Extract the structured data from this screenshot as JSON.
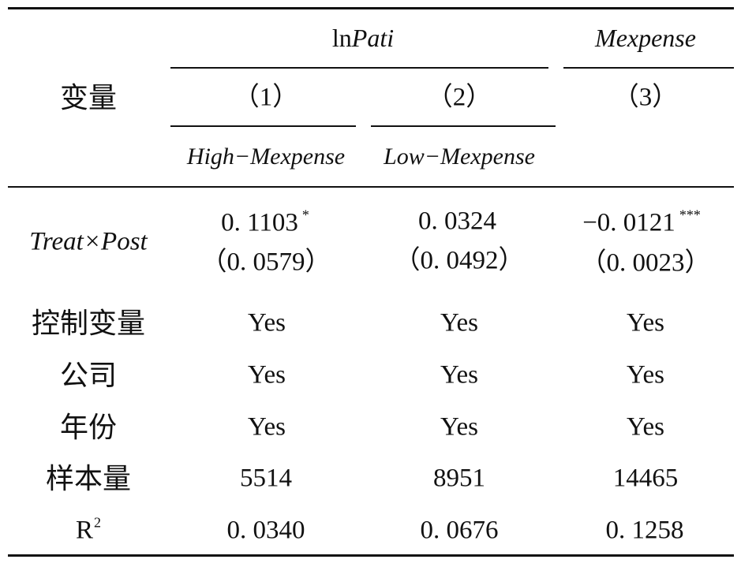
{
  "table": {
    "header": {
      "group1": {
        "prefix": "ln",
        "name": "Pati"
      },
      "group2": "Mexpense",
      "variable_label": "变量",
      "columns": [
        "（1）",
        "（2）",
        "（3）"
      ],
      "subgroups": [
        "High−Mexpense",
        "Low−Mexpense"
      ]
    },
    "treat": {
      "label": "Treat×Post",
      "cells": [
        {
          "coef": "0. 1103",
          "stars": "*",
          "se": "（0. 0579）"
        },
        {
          "coef": "0. 0324",
          "stars": "",
          "se": "（0. 0492）"
        },
        {
          "coef": "−0. 0121",
          "stars": "***",
          "se": "（0. 0023）"
        }
      ]
    },
    "rows": [
      {
        "label": "控制变量",
        "cells": [
          "Yes",
          "Yes",
          "Yes"
        ]
      },
      {
        "label": "公司",
        "cells": [
          "Yes",
          "Yes",
          "Yes"
        ]
      },
      {
        "label": "年份",
        "cells": [
          "Yes",
          "Yes",
          "Yes"
        ]
      },
      {
        "label": "样本量",
        "cells": [
          "5514",
          "8951",
          "14465"
        ]
      }
    ],
    "r2": {
      "label": "R",
      "sup": "2",
      "cells": [
        "0. 0340",
        "0. 0676",
        "0. 1258"
      ]
    }
  }
}
